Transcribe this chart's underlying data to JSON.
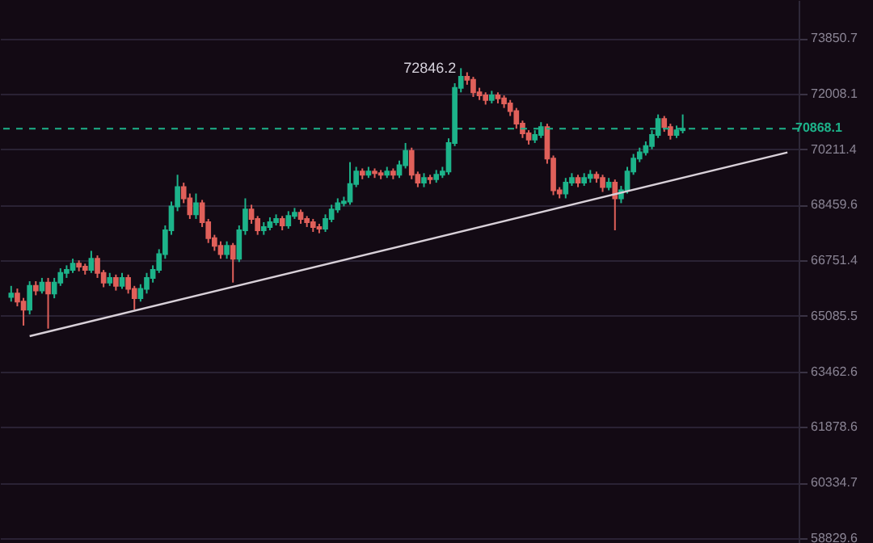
{
  "chart_data": {
    "type": "candlestick",
    "categories": [
      null,
      null,
      null,
      null,
      null,
      null,
      null,
      null,
      null,
      null,
      null,
      null,
      null,
      null,
      null,
      null,
      null,
      null,
      null,
      null,
      null,
      null,
      null,
      null,
      null,
      null,
      null,
      null,
      null,
      null,
      null,
      null,
      null,
      null,
      null,
      null,
      null,
      null,
      null,
      null,
      null,
      null,
      null,
      null,
      null,
      null,
      null,
      null,
      null,
      null,
      null,
      null,
      null,
      null,
      null,
      null,
      null,
      null,
      null,
      null,
      null,
      null,
      null,
      null,
      null,
      null,
      null,
      null,
      null,
      null,
      null,
      null,
      null,
      null,
      null,
      null,
      null,
      null,
      null,
      null,
      null,
      null,
      null,
      null,
      null,
      null,
      null,
      null,
      null,
      null,
      null,
      null,
      null,
      null,
      null,
      null,
      null,
      null,
      null,
      null,
      null,
      null,
      null,
      null,
      null,
      null,
      null,
      null,
      null,
      null,
      null,
      null,
      null,
      null,
      null,
      null,
      null,
      null,
      null,
      null,
      null,
      null,
      null,
      null,
      null,
      null,
      null
    ],
    "ohlc": [
      [
        65650,
        65980,
        65510,
        65750
      ],
      [
        65750,
        65900,
        65370,
        65510
      ],
      [
        65510,
        65620,
        64800,
        65270
      ],
      [
        65270,
        66120,
        65130,
        65980
      ],
      [
        65980,
        66120,
        65700,
        65840
      ],
      [
        65840,
        66220,
        65750,
        66080
      ],
      [
        66080,
        66220,
        64710,
        65750
      ],
      [
        65750,
        66220,
        65610,
        66080
      ],
      [
        66080,
        66510,
        65980,
        66370
      ],
      [
        66370,
        66600,
        66220,
        66460
      ],
      [
        66460,
        66800,
        66370,
        66650
      ],
      [
        66650,
        66750,
        66420,
        66560
      ],
      [
        66560,
        66650,
        66320,
        66460
      ],
      [
        66460,
        67040,
        66370,
        66800
      ],
      [
        66800,
        66900,
        66220,
        66370
      ],
      [
        66370,
        66460,
        65940,
        66080
      ],
      [
        66080,
        66370,
        65980,
        66220
      ],
      [
        66220,
        66320,
        65840,
        65980
      ],
      [
        65980,
        66370,
        65890,
        66220
      ],
      [
        66220,
        66320,
        65750,
        65890
      ],
      [
        65890,
        65980,
        65270,
        65610
      ],
      [
        65610,
        66030,
        65510,
        65890
      ],
      [
        65890,
        66370,
        65750,
        66220
      ],
      [
        66220,
        66600,
        66080,
        66460
      ],
      [
        66460,
        67090,
        66370,
        66940
      ],
      [
        66940,
        67820,
        66800,
        67670
      ],
      [
        67670,
        68560,
        67530,
        68410
      ],
      [
        68410,
        69400,
        68260,
        69010
      ],
      [
        69010,
        69150,
        68510,
        68660
      ],
      [
        68660,
        68810,
        68020,
        68160
      ],
      [
        68160,
        68810,
        68020,
        68510
      ],
      [
        68510,
        68610,
        67770,
        67920
      ],
      [
        67920,
        68020,
        67280,
        67430
      ],
      [
        67430,
        67530,
        67040,
        67190
      ],
      [
        67190,
        67330,
        66800,
        66940
      ],
      [
        66940,
        67330,
        66800,
        67190
      ],
      [
        67190,
        67280,
        66080,
        66800
      ],
      [
        66800,
        67820,
        66700,
        67670
      ],
      [
        67670,
        68660,
        67530,
        68310
      ],
      [
        68310,
        68460,
        67870,
        68020
      ],
      [
        68020,
        68110,
        67530,
        67670
      ],
      [
        67670,
        67920,
        67530,
        67770
      ],
      [
        67770,
        68070,
        67670,
        67920
      ],
      [
        67920,
        68160,
        67820,
        68020
      ],
      [
        68020,
        68110,
        67670,
        67820
      ],
      [
        67820,
        68260,
        67720,
        68110
      ],
      [
        68110,
        68360,
        68020,
        68210
      ],
      [
        68210,
        68310,
        67870,
        68020
      ],
      [
        68020,
        68110,
        67770,
        67920
      ],
      [
        67920,
        68020,
        67620,
        67770
      ],
      [
        67770,
        67870,
        67580,
        67720
      ],
      [
        67720,
        68160,
        67620,
        68020
      ],
      [
        68020,
        68460,
        67920,
        68310
      ],
      [
        68310,
        68660,
        68210,
        68510
      ],
      [
        68510,
        68710,
        68410,
        68560
      ],
      [
        68560,
        69800,
        68460,
        69110
      ],
      [
        69110,
        69650,
        69010,
        69500
      ],
      [
        69500,
        69600,
        69260,
        69400
      ],
      [
        69400,
        69650,
        69300,
        69500
      ],
      [
        69500,
        69600,
        69300,
        69450
      ],
      [
        69450,
        69550,
        69260,
        69400
      ],
      [
        69400,
        69650,
        69300,
        69500
      ],
      [
        69500,
        69600,
        69260,
        69400
      ],
      [
        69400,
        69850,
        69300,
        69700
      ],
      [
        69700,
        70410,
        69600,
        70160
      ],
      [
        70160,
        70260,
        69260,
        69400
      ],
      [
        69400,
        69500,
        69010,
        69150
      ],
      [
        69150,
        69450,
        69010,
        69300
      ],
      [
        69300,
        69400,
        69110,
        69260
      ],
      [
        69260,
        69550,
        69150,
        69400
      ],
      [
        69400,
        69650,
        69300,
        69500
      ],
      [
        69500,
        70560,
        69400,
        70410
      ],
      [
        70410,
        72350,
        70310,
        72200
      ],
      [
        72200,
        72846.2,
        72050,
        72560
      ],
      [
        72560,
        72710,
        72300,
        72460
      ],
      [
        72460,
        72560,
        71900,
        72050
      ],
      [
        72050,
        72200,
        71800,
        71950
      ],
      [
        71950,
        72050,
        71650,
        71800
      ],
      [
        71800,
        72100,
        71690,
        71950
      ],
      [
        71950,
        72050,
        71690,
        71850
      ],
      [
        71850,
        71950,
        71540,
        71690
      ],
      [
        71690,
        71800,
        71280,
        71440
      ],
      [
        71440,
        71540,
        70870,
        71030
      ],
      [
        71030,
        71130,
        70570,
        70720
      ],
      [
        70720,
        70820,
        70360,
        70520
      ],
      [
        70520,
        70820,
        70410,
        70670
      ],
      [
        70670,
        71080,
        70570,
        70920
      ],
      [
        70920,
        71030,
        69750,
        69910
      ],
      [
        69910,
        70010,
        68760,
        68910
      ],
      [
        68910,
        69010,
        68660,
        68810
      ],
      [
        68810,
        69300,
        68660,
        69150
      ],
      [
        69150,
        69450,
        69050,
        69300
      ],
      [
        69300,
        69400,
        69010,
        69150
      ],
      [
        69150,
        69450,
        69050,
        69300
      ],
      [
        69300,
        69550,
        69150,
        69400
      ],
      [
        69400,
        69500,
        69150,
        69300
      ],
      [
        69300,
        69400,
        68860,
        69010
      ],
      [
        69010,
        69300,
        68910,
        69150
      ],
      [
        69150,
        69250,
        67670,
        68660
      ],
      [
        68660,
        69050,
        68510,
        68910
      ],
      [
        68910,
        69650,
        68810,
        69500
      ],
      [
        69500,
        70060,
        69400,
        69910
      ],
      [
        69910,
        70260,
        69800,
        70110
      ],
      [
        70110,
        70460,
        70010,
        70310
      ],
      [
        70310,
        70820,
        70210,
        70670
      ],
      [
        70670,
        71330,
        70570,
        71180
      ],
      [
        71180,
        71280,
        70770,
        70920
      ],
      [
        70920,
        71030,
        70520,
        70670
      ],
      [
        70670,
        70970,
        70570,
        70820
      ],
      [
        70820,
        71330,
        70720,
        70868.1
      ],
      null,
      null,
      null,
      null,
      null,
      null,
      null,
      null,
      null,
      null,
      null,
      null,
      null,
      null,
      null,
      null,
      null
    ],
    "colors": [
      "#1db38a",
      "#e0605a",
      "#e0605a",
      "#1db38a",
      "#e0605a",
      "#1db38a",
      "#e0605a",
      "#1db38a",
      "#1db38a",
      "#1db38a",
      "#1db38a",
      "#e0605a",
      "#e0605a",
      "#1db38a",
      "#e0605a",
      "#e0605a",
      "#1db38a",
      "#e0605a",
      "#1db38a",
      "#e0605a",
      "#e0605a",
      "#1db38a",
      "#1db38a",
      "#1db38a",
      "#1db38a",
      "#1db38a",
      "#1db38a",
      "#1db38a",
      "#e0605a",
      "#e0605a",
      "#1db38a",
      "#e0605a",
      "#e0605a",
      "#e0605a",
      "#e0605a",
      "#1db38a",
      "#e0605a",
      "#1db38a",
      "#1db38a",
      "#e0605a",
      "#e0605a",
      "#1db38a",
      "#1db38a",
      "#1db38a",
      "#e0605a",
      "#1db38a",
      "#1db38a",
      "#e0605a",
      "#e0605a",
      "#e0605a",
      "#e0605a",
      "#1db38a",
      "#1db38a",
      "#1db38a",
      "#1db38a",
      "#1db38a",
      "#1db38a",
      "#e0605a",
      "#1db38a",
      "#e0605a",
      "#e0605a",
      "#1db38a",
      "#e0605a",
      "#1db38a",
      "#1db38a",
      "#e0605a",
      "#e0605a",
      "#1db38a",
      "#e0605a",
      "#1db38a",
      "#1db38a",
      "#1db38a",
      "#1db38a",
      "#1db38a",
      "#e0605a",
      "#e0605a",
      "#e0605a",
      "#e0605a",
      "#1db38a",
      "#e0605a",
      "#e0605a",
      "#e0605a",
      "#e0605a",
      "#e0605a",
      "#e0605a",
      "#1db38a",
      "#1db38a",
      "#e0605a",
      "#e0605a",
      "#e0605a",
      "#1db38a",
      "#1db38a",
      "#e0605a",
      "#1db38a",
      "#1db38a",
      "#e0605a",
      "#e0605a",
      "#1db38a",
      "#e0605a",
      "#1db38a",
      "#1db38a",
      "#1db38a",
      "#1db38a",
      "#1db38a",
      "#1db38a",
      "#1db38a",
      "#e0605a",
      "#e0605a",
      "#1db38a",
      "#1db38a",
      null,
      null,
      null,
      null,
      null,
      null,
      null,
      null,
      null,
      null,
      null,
      null,
      null,
      null,
      null,
      null,
      null
    ],
    "series": [
      {
        "type": "line",
        "values": [
          null,
          null,
          null,
          64490,
          null,
          null,
          null,
          null,
          null,
          null,
          null,
          null,
          null,
          null,
          null,
          null,
          null,
          null,
          null,
          null,
          null,
          null,
          null,
          null,
          null,
          null,
          null,
          null,
          null,
          null,
          null,
          null,
          null,
          null,
          null,
          null,
          null,
          null,
          null,
          null,
          null,
          null,
          null,
          null,
          null,
          null,
          null,
          null,
          null,
          null,
          null,
          null,
          null,
          null,
          null,
          null,
          null,
          null,
          null,
          null,
          null,
          null,
          null,
          null,
          null,
          null,
          null,
          null,
          null,
          null,
          null,
          null,
          null,
          null,
          null,
          null,
          null,
          null,
          null,
          null,
          null,
          null,
          null,
          null,
          null,
          null,
          null,
          null,
          null,
          null,
          null,
          null,
          null,
          null,
          null,
          null,
          null,
          null,
          null,
          null,
          null,
          null,
          null,
          null,
          null,
          null,
          null,
          null,
          null,
          null,
          null,
          null,
          null,
          null,
          null,
          null,
          null,
          null,
          null,
          null,
          null,
          null,
          null,
          null,
          null,
          null,
          70110
        ],
        "color": "#d8d0d8"
      }
    ],
    "ylim": [
      58700,
      75140
    ],
    "yticks": [
      73850.7,
      72008.1,
      70211.4,
      68459.6,
      66751.4,
      65085.5,
      63462.6,
      61878.6,
      60334.7,
      58829.6
    ],
    "log": "y",
    "grid": "y",
    "tick_labels": "y",
    "ref_lines": [
      {
        "axis": "y",
        "value": 70868.1,
        "label": "70868.1",
        "color": "#1db38a",
        "line_style": "dashed"
      }
    ],
    "annotations": [
      "72846.2"
    ]
  }
}
